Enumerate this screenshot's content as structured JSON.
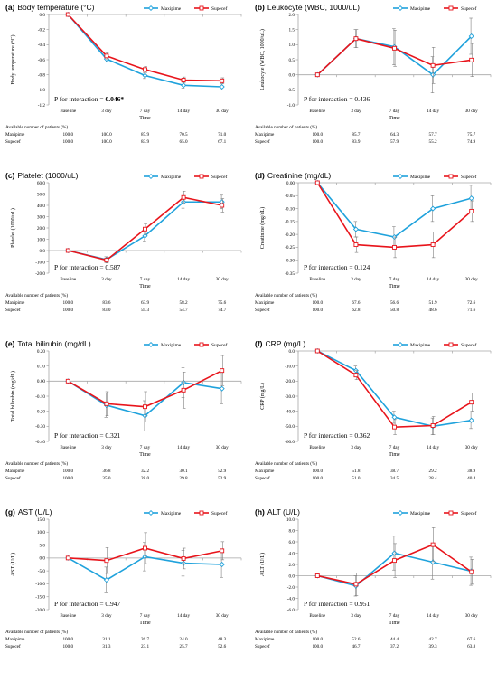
{
  "colors": {
    "maxipime": "#1fa2dc",
    "supecef": "#e8141b",
    "axis": "#a6a6a6",
    "errorbar": "#7f7f7f"
  },
  "table_label": "Available  number of patients (%)",
  "x_label": "Time",
  "chart_data": [
    {
      "type": "line",
      "letter": "(a)",
      "title": "Body temperature (°C)",
      "ylabel": "Body temperature (°C)",
      "categories": [
        "Baseline",
        "3 day",
        "7 day",
        "14 day",
        "30 day"
      ],
      "yticks": [
        "0.0",
        "-0.2",
        "-0.4",
        "-0.6",
        "-0.8",
        "-1.0",
        "-1.2"
      ],
      "ylim": [
        -1.2,
        0.0
      ],
      "p_text": "P for interaction = ",
      "p_value": "0.046*",
      "p_bold": true,
      "series": [
        {
          "name": "Maxipime",
          "values": [
            0.0,
            -0.59,
            -0.81,
            -0.94,
            -0.96
          ],
          "err": [
            0,
            0.04,
            0.04,
            0.04,
            0.04
          ]
        },
        {
          "name": "Supecef",
          "values": [
            0.0,
            -0.55,
            -0.73,
            -0.87,
            -0.88
          ],
          "err": [
            0,
            0.04,
            0.04,
            0.04,
            0.04
          ]
        }
      ],
      "table": {
        "maxipime": [
          "100.0",
          "100.0",
          "87.9",
          "70.5",
          "71.0"
        ],
        "supecef": [
          "100.0",
          "100.0",
          "83.9",
          "65.0",
          "67.1"
        ]
      }
    },
    {
      "type": "line",
      "letter": "(b)",
      "title": "Leukocyte (WBC, 1000/uL)",
      "ylabel": "Leukocyte (WBC, 1000/uL)",
      "categories": [
        "Baseline",
        "3 day",
        "7 day",
        "14 day",
        "30 day"
      ],
      "yticks": [
        "2.0",
        "1.5",
        "1.0",
        "0.5",
        "0.0",
        "-0.5",
        "-1.0"
      ],
      "ylim": [
        -1.0,
        2.0
      ],
      "p_text": "P for interaction = 0.436",
      "p_value": "",
      "p_bold": false,
      "series": [
        {
          "name": "Maxipime",
          "values": [
            0.0,
            1.2,
            0.93,
            0.0,
            1.28
          ],
          "err": [
            0,
            0.3,
            0.6,
            0.6,
            0.6
          ]
        },
        {
          "name": "Supecef",
          "values": [
            0.0,
            1.2,
            0.88,
            0.31,
            0.49
          ],
          "err": [
            0,
            0.3,
            0.6,
            0.6,
            0.55
          ]
        }
      ],
      "table": {
        "maxipime": [
          "100.0",
          "85.7",
          "64.3",
          "57.7",
          "75.7"
        ],
        "supecef": [
          "100.0",
          "83.9",
          "57.9",
          "55.2",
          "74.9"
        ]
      }
    },
    {
      "type": "line",
      "letter": "(c)",
      "title": "Platelet (1000/uL)",
      "ylabel": "Platelet (1000/uL)",
      "categories": [
        "Baseline",
        "3 day",
        "7 day",
        "14 day",
        "30 day"
      ],
      "yticks": [
        "60.0",
        "50.0",
        "40.0",
        "30.0",
        "20.0",
        "10.0",
        "0.0",
        "-10.0",
        "-20.0"
      ],
      "ylim": [
        -20.0,
        60.0
      ],
      "p_text": "P for interaction = 0.587",
      "p_value": "",
      "p_bold": false,
      "series": [
        {
          "name": "Maxipime",
          "values": [
            0.0,
            -8.0,
            13.0,
            43.0,
            43.0
          ],
          "err": [
            0,
            2.5,
            4.5,
            5.5,
            6.0
          ]
        },
        {
          "name": "Supecef",
          "values": [
            0.0,
            -8.5,
            19.0,
            47.0,
            40.0
          ],
          "err": [
            0,
            2.5,
            4.5,
            5.5,
            6.0
          ]
        }
      ],
      "table": {
        "maxipime": [
          "100.0",
          "83.6",
          "63.9",
          "58.2",
          "75.6"
        ],
        "supecef": [
          "100.0",
          "83.0",
          "59.3",
          "54.7",
          "74.7"
        ]
      }
    },
    {
      "type": "line",
      "letter": "(d)",
      "title": "Creatinine (mg/dL)",
      "ylabel": "Creatinine (mg/dL)",
      "categories": [
        "Baseline",
        "3 day",
        "7 day",
        "14 day",
        "30 day"
      ],
      "yticks": [
        "0.00",
        "-0.05",
        "-0.10",
        "-0.15",
        "-0.20",
        "-0.25",
        "-0.30",
        "-0.35"
      ],
      "ylim": [
        -0.35,
        0.0
      ],
      "p_text": "P for interaction = 0.124",
      "p_value": "",
      "p_bold": false,
      "series": [
        {
          "name": "Maxipime",
          "values": [
            0.0,
            -0.18,
            -0.21,
            -0.1,
            -0.06
          ],
          "err": [
            0,
            0.03,
            0.04,
            0.05,
            0.05
          ]
        },
        {
          "name": "Supecef",
          "values": [
            0.0,
            -0.24,
            -0.25,
            -0.24,
            -0.11
          ],
          "err": [
            0,
            0.03,
            0.04,
            0.05,
            0.04
          ]
        }
      ],
      "table": {
        "maxipime": [
          "100.0",
          "67.6",
          "56.6",
          "51.9",
          "72.6"
        ],
        "supecef": [
          "100.0",
          "62.8",
          "50.8",
          "48.6",
          "71.6"
        ]
      }
    },
    {
      "type": "line",
      "letter": "(e)",
      "title": "Total bilirubin (mg/dL)",
      "ylabel": "Total bilirubin (mg/dL)",
      "categories": [
        "Baseline",
        "3 day",
        "7 day",
        "14 day",
        "30 day"
      ],
      "yticks": [
        "0.20",
        "0.10",
        "0.00",
        "-0.10",
        "-0.20",
        "-0.30",
        "-0.40"
      ],
      "ylim": [
        -0.4,
        0.2
      ],
      "p_text": "P for interaction = 0.321",
      "p_value": "",
      "p_bold": false,
      "series": [
        {
          "name": "Maxipime",
          "values": [
            0.0,
            -0.16,
            -0.23,
            -0.01,
            -0.05
          ],
          "err": [
            0,
            0.08,
            0.1,
            0.1,
            0.1
          ]
        },
        {
          "name": "Supecef",
          "values": [
            0.0,
            -0.15,
            -0.17,
            -0.06,
            0.07
          ],
          "err": [
            0,
            0.08,
            0.1,
            0.12,
            0.1
          ]
        }
      ],
      "table": {
        "maxipime": [
          "100.0",
          "36.8",
          "32.2",
          "30.1",
          "52.9"
        ],
        "supecef": [
          "100.0",
          "35.0",
          "28.0",
          "29.8",
          "52.9"
        ]
      }
    },
    {
      "type": "line",
      "letter": "(f)",
      "title": "CRP (mg/L)",
      "ylabel": "CRP (mg/L)",
      "categories": [
        "Baseline",
        "3 day",
        "7 day",
        "14 day",
        "30 day"
      ],
      "yticks": [
        "0.0",
        "-10.0",
        "-20.0",
        "-30.0",
        "-40.0",
        "-50.0",
        "-60.0"
      ],
      "ylim": [
        -60.0,
        0.0
      ],
      "p_text": "P for interaction = 0.362",
      "p_value": "",
      "p_bold": false,
      "series": [
        {
          "name": "Maxipime",
          "values": [
            0.0,
            -13.0,
            -44.0,
            -50.0,
            -46.0
          ],
          "err": [
            0,
            3.0,
            4.0,
            5.5,
            5.5
          ]
        },
        {
          "name": "Supecef",
          "values": [
            0.0,
            -16.0,
            -50.5,
            -49.5,
            -34.0
          ],
          "err": [
            0,
            3.0,
            5.0,
            6.0,
            6.0
          ]
        }
      ],
      "table": {
        "maxipime": [
          "100.0",
          "51.8",
          "38.7",
          "29.2",
          "38.9"
        ],
        "supecef": [
          "100.0",
          "51.0",
          "34.5",
          "28.4",
          "40.4"
        ]
      }
    },
    {
      "type": "line",
      "letter": "(g)",
      "title": "AST (U/L)",
      "ylabel": "AST (U/L)",
      "categories": [
        "Baseline",
        "3 day",
        "7 day",
        "14 day",
        "30 day"
      ],
      "yticks": [
        "15.0",
        "10.0",
        "5.0",
        "0.0",
        "-5.0",
        "-10.0",
        "-15.0",
        "-20.0"
      ],
      "ylim": [
        -20.0,
        15.0
      ],
      "p_text": "P for interaction = 0.947",
      "p_value": "",
      "p_bold": false,
      "series": [
        {
          "name": "Maxipime",
          "values": [
            0.0,
            -8.5,
            0.5,
            -2.0,
            -2.5
          ],
          "err": [
            0,
            5.0,
            5.5,
            5.0,
            5.0
          ]
        },
        {
          "name": "Supecef",
          "values": [
            0.0,
            -1.0,
            3.8,
            -0.2,
            2.8
          ],
          "err": [
            0,
            5.0,
            6.0,
            4.0,
            3.5
          ]
        }
      ],
      "table": {
        "maxipime": [
          "100.0",
          "31.1",
          "26.7",
          "24.0",
          "48.3"
        ],
        "supecef": [
          "100.0",
          "31.3",
          "23.1",
          "25.7",
          "52.6"
        ]
      }
    },
    {
      "type": "line",
      "letter": "(h)",
      "title": "ALT (U/L)",
      "ylabel": "ALT (U/L)",
      "categories": [
        "Baseline",
        "3 day",
        "7 day",
        "14 day",
        "30 day"
      ],
      "yticks": [
        "10.0",
        "8.0",
        "6.0",
        "4.0",
        "2.0",
        "0.0",
        "-2.0",
        "-4.0",
        "-6.0"
      ],
      "ylim": [
        -6.0,
        10.0
      ],
      "p_text": "P for interaction = 0.951",
      "p_value": "",
      "p_bold": false,
      "series": [
        {
          "name": "Maxipime",
          "values": [
            0.0,
            -1.8,
            4.0,
            2.4,
            0.8
          ],
          "err": [
            0,
            1.8,
            3.0,
            3.0,
            2.5
          ]
        },
        {
          "name": "Supecef",
          "values": [
            0.0,
            -1.5,
            2.7,
            5.5,
            0.7
          ],
          "err": [
            0,
            2.0,
            3.0,
            3.0,
            2.2
          ]
        }
      ],
      "table": {
        "maxipime": [
          "100.0",
          "52.6",
          "44.4",
          "42.7",
          "67.6"
        ],
        "supecef": [
          "100.0",
          "46.7",
          "37.2",
          "39.3",
          "63.8"
        ]
      }
    }
  ]
}
